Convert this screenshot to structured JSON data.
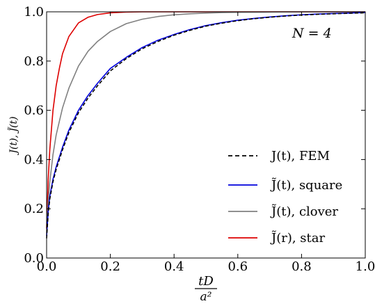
{
  "chart_data": {
    "type": "line",
    "xlabel_num": "tD",
    "xlabel_den": "a²",
    "ylabel": "J(t), J̃(t)",
    "annotation": "N = 4",
    "xlim": [
      0.0,
      1.0
    ],
    "ylim": [
      0.0,
      1.0
    ],
    "xticks": [
      "0.0",
      "0.2",
      "0.4",
      "0.6",
      "0.8",
      "1.0"
    ],
    "yticks": [
      "0.0",
      "0.2",
      "0.4",
      "0.6",
      "0.8",
      "1.0"
    ],
    "legend_position": "lower-right",
    "grid": false,
    "series": [
      {
        "name": "J(t), FEM",
        "color": "#000000",
        "dash": "dashed",
        "x": [
          0.0,
          0.005,
          0.01,
          0.02,
          0.03,
          0.05,
          0.07,
          0.1,
          0.13,
          0.16,
          0.2,
          0.25,
          0.3,
          0.35,
          0.4,
          0.45,
          0.5,
          0.55,
          0.6,
          0.65,
          0.7,
          0.75,
          0.8,
          0.85,
          0.9,
          0.95,
          1.0
        ],
        "y": [
          0.08,
          0.18,
          0.24,
          0.31,
          0.36,
          0.44,
          0.51,
          0.59,
          0.65,
          0.7,
          0.76,
          0.81,
          0.85,
          0.88,
          0.905,
          0.925,
          0.942,
          0.954,
          0.964,
          0.972,
          0.978,
          0.983,
          0.987,
          0.99,
          0.992,
          0.994,
          0.996
        ]
      },
      {
        "name": "J̃(t), square",
        "color": "#0000dd",
        "dash": "solid",
        "x": [
          0.0,
          0.005,
          0.01,
          0.02,
          0.03,
          0.05,
          0.07,
          0.1,
          0.13,
          0.16,
          0.2,
          0.25,
          0.3,
          0.35,
          0.4,
          0.45,
          0.5,
          0.55,
          0.6,
          0.65,
          0.7,
          0.75,
          0.8,
          0.85,
          0.9,
          0.95,
          1.0
        ],
        "y": [
          0.09,
          0.19,
          0.25,
          0.32,
          0.37,
          0.45,
          0.52,
          0.6,
          0.66,
          0.71,
          0.77,
          0.815,
          0.855,
          0.885,
          0.908,
          0.928,
          0.944,
          0.956,
          0.966,
          0.973,
          0.979,
          0.984,
          0.988,
          0.991,
          0.993,
          0.995,
          0.997
        ]
      },
      {
        "name": "J̃(t), clover",
        "color": "#808080",
        "dash": "solid",
        "x": [
          0.0,
          0.005,
          0.01,
          0.02,
          0.03,
          0.05,
          0.07,
          0.1,
          0.13,
          0.16,
          0.2,
          0.25,
          0.3,
          0.35,
          0.4,
          0.45,
          0.5,
          0.55,
          0.6,
          0.7,
          0.8,
          0.9,
          1.0
        ],
        "y": [
          0.1,
          0.23,
          0.31,
          0.42,
          0.5,
          0.61,
          0.69,
          0.78,
          0.84,
          0.88,
          0.92,
          0.952,
          0.97,
          0.981,
          0.988,
          0.992,
          0.995,
          0.997,
          0.998,
          0.999,
          1.0,
          1.0,
          1.0
        ]
      },
      {
        "name": "J̃(r), star",
        "color": "#dd0000",
        "dash": "solid",
        "x": [
          0.0,
          0.005,
          0.01,
          0.02,
          0.03,
          0.04,
          0.05,
          0.07,
          0.1,
          0.13,
          0.16,
          0.2,
          0.25,
          0.3,
          0.4,
          0.5,
          0.7,
          1.0
        ],
        "y": [
          0.12,
          0.32,
          0.44,
          0.6,
          0.7,
          0.77,
          0.83,
          0.9,
          0.955,
          0.978,
          0.989,
          0.996,
          0.999,
          1.0,
          1.0,
          1.0,
          1.0,
          1.0
        ]
      }
    ]
  }
}
